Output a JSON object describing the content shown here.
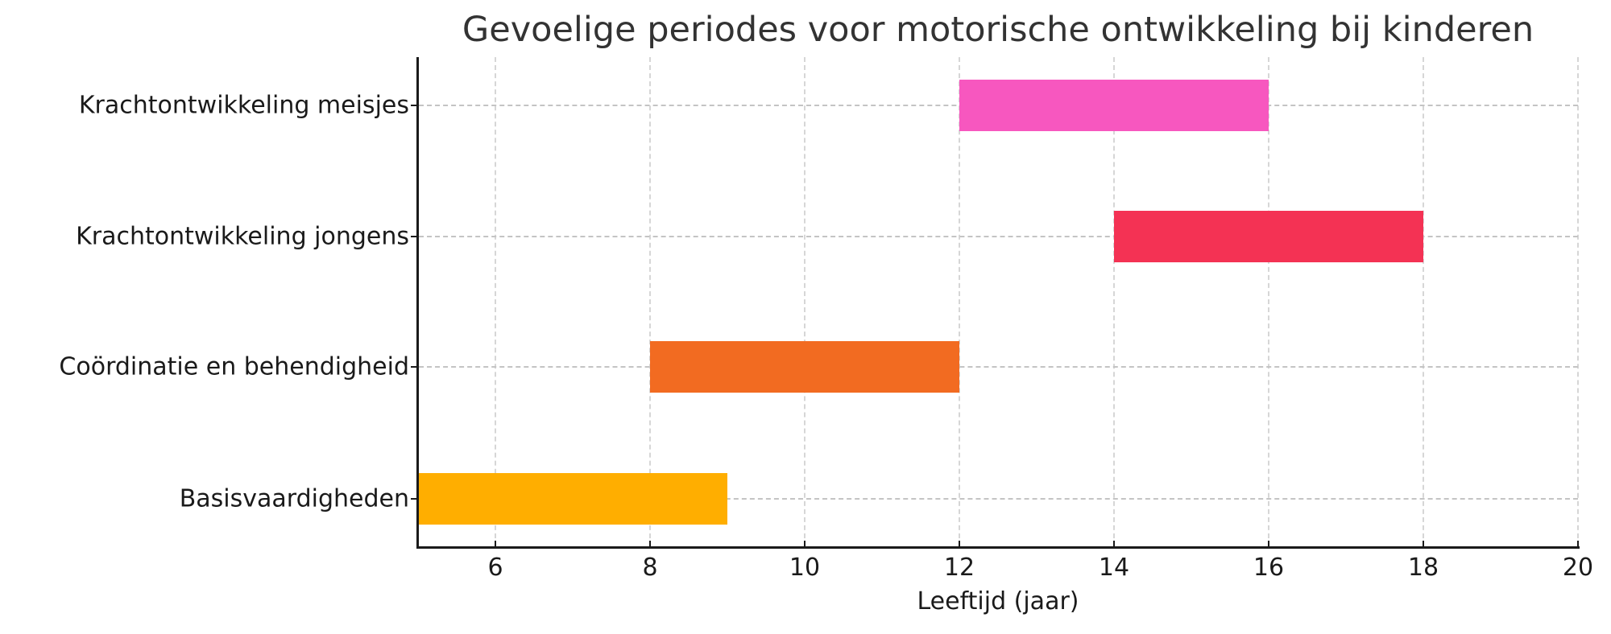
{
  "chart_data": {
    "type": "bar",
    "orientation": "horizontal",
    "title": "Gevoelige periodes voor motorische ontwikkeling bij kinderen",
    "xlabel": "Leeftijd (jaar)",
    "ylabel": "",
    "xlim": [
      5,
      20
    ],
    "xticks": [
      "6",
      "8",
      "10",
      "12",
      "14",
      "16",
      "18",
      "20"
    ],
    "grid": true,
    "legend": null,
    "categories": [
      "Krachtontwikkeling meisjes",
      "Krachtontwikkeling jongens",
      "Coördinatie en behendigheid",
      "Basisvaardigheden"
    ],
    "series": [
      {
        "name": "Krachtontwikkeling meisjes",
        "start": 12,
        "end": 16,
        "color": "#F757BF"
      },
      {
        "name": "Krachtontwikkeling jongens",
        "start": 14,
        "end": 18,
        "color": "#F43254"
      },
      {
        "name": "Coördinatie en behendigheid",
        "start": 8,
        "end": 12,
        "color": "#F26B21"
      },
      {
        "name": "Basisvaardigheden",
        "start": 5,
        "end": 9,
        "color": "#FFAE00"
      }
    ]
  }
}
